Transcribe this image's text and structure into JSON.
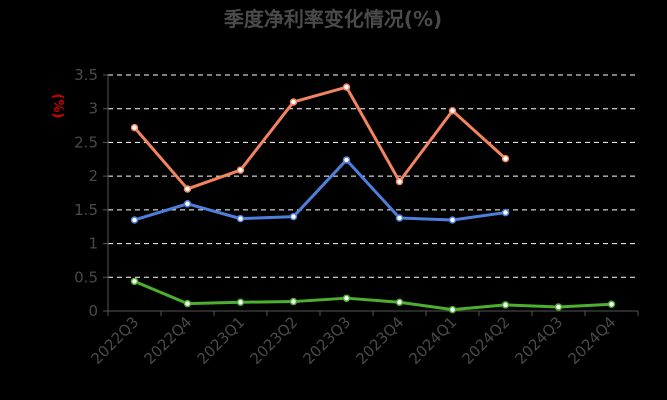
{
  "chart_data": {
    "type": "line",
    "title": "季度净利率变化情况(%)",
    "ylabel": "(%)",
    "categories": [
      "2022Q3",
      "2022Q4",
      "2023Q1",
      "2023Q2",
      "2023Q3",
      "2023Q4",
      "2024Q1",
      "2024Q2",
      "2024Q3",
      "2024Q4"
    ],
    "yticks": [
      "0",
      "0.5",
      "1",
      "1.5",
      "2",
      "2.5",
      "3",
      "3.5"
    ],
    "ylim": [
      0,
      3.5
    ],
    "grid": "horizontal-dashed",
    "series": [
      {
        "color": "#f4845f",
        "values": [
          2.72,
          1.81,
          2.09,
          3.1,
          3.32,
          1.92,
          2.97,
          2.26,
          null,
          null
        ]
      },
      {
        "color": "#4f7fdc",
        "values": [
          1.35,
          1.59,
          1.37,
          1.4,
          2.24,
          1.38,
          1.35,
          1.46,
          null,
          null
        ]
      },
      {
        "color": "#4caf2f",
        "values": [
          0.44,
          0.11,
          0.13,
          0.14,
          0.19,
          0.13,
          0.02,
          0.09,
          0.06,
          0.1
        ]
      }
    ]
  }
}
